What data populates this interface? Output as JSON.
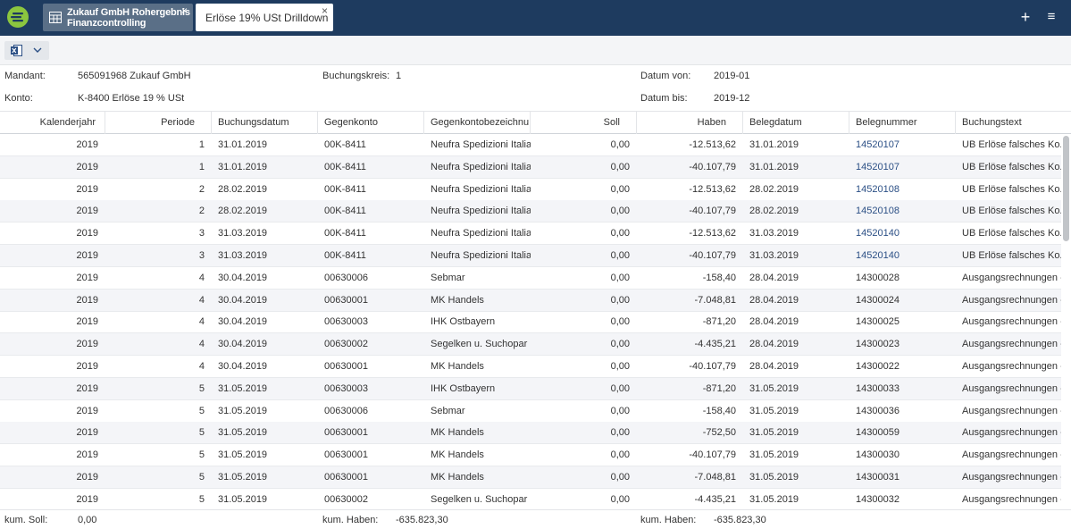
{
  "tabs": [
    {
      "title": "Zukauf GmbH Rohergebnis",
      "subtitle": "Finanzcontrolling"
    },
    {
      "title": "Erlöse 19% USt Drilldown"
    }
  ],
  "icons": {
    "close": "×",
    "plus": "+",
    "menu": "≡"
  },
  "info": {
    "mandant_label": "Mandant:",
    "mandant_value": "565091968 Zukauf GmbH",
    "konto_label": "Konto:",
    "konto_value": "K-8400 Erlöse 19 % USt",
    "buchungskreis_label": "Buchungskreis:",
    "buchungskreis_value": "1",
    "datum_von_label": "Datum von:",
    "datum_von_value": "2019-01",
    "datum_bis_label": "Datum bis:",
    "datum_bis_value": "2019-12"
  },
  "columns": [
    "Kalenderjahr",
    "Periode",
    "Buchungsdatum",
    "Gegenkonto",
    "Gegenkontobezeichnu...",
    "Soll",
    "Haben",
    "Belegdatum",
    "Belegnummer",
    "Buchungstext"
  ],
  "rows": [
    [
      "2019",
      "1",
      "31.01.2019",
      "00K-8411",
      "Neufra Spedizioni Italia",
      "0,00",
      "-12.513,62",
      "31.01.2019",
      "14520107",
      "UB Erlöse falsches Ko..."
    ],
    [
      "2019",
      "1",
      "31.01.2019",
      "00K-8411",
      "Neufra Spedizioni Italia",
      "0,00",
      "-40.107,79",
      "31.01.2019",
      "14520107",
      "UB Erlöse falsches Ko..."
    ],
    [
      "2019",
      "2",
      "28.02.2019",
      "00K-8411",
      "Neufra Spedizioni Italia",
      "0,00",
      "-12.513,62",
      "28.02.2019",
      "14520108",
      "UB Erlöse falsches Ko..."
    ],
    [
      "2019",
      "2",
      "28.02.2019",
      "00K-8411",
      "Neufra Spedizioni Italia",
      "0,00",
      "-40.107,79",
      "28.02.2019",
      "14520108",
      "UB Erlöse falsches Ko..."
    ],
    [
      "2019",
      "3",
      "31.03.2019",
      "00K-8411",
      "Neufra Spedizioni Italia",
      "0,00",
      "-12.513,62",
      "31.03.2019",
      "14520140",
      "UB Erlöse falsches Ko..."
    ],
    [
      "2019",
      "3",
      "31.03.2019",
      "00K-8411",
      "Neufra Spedizioni Italia",
      "0,00",
      "-40.107,79",
      "31.03.2019",
      "14520140",
      "UB Erlöse falsches Ko..."
    ],
    [
      "2019",
      "4",
      "30.04.2019",
      "00630006",
      "Sebmar",
      "0,00",
      "-158,40",
      "28.04.2019",
      "14300028",
      "Ausgangsrechnungen -..."
    ],
    [
      "2019",
      "4",
      "30.04.2019",
      "00630001",
      "MK Handels",
      "0,00",
      "-7.048,81",
      "28.04.2019",
      "14300024",
      "Ausgangsrechnungen -..."
    ],
    [
      "2019",
      "4",
      "30.04.2019",
      "00630003",
      "IHK Ostbayern",
      "0,00",
      "-871,20",
      "28.04.2019",
      "14300025",
      "Ausgangsrechnungen -..."
    ],
    [
      "2019",
      "4",
      "30.04.2019",
      "00630002",
      "Segelken u. Suchopar",
      "0,00",
      "-4.435,21",
      "28.04.2019",
      "14300023",
      "Ausgangsrechnungen -..."
    ],
    [
      "2019",
      "4",
      "30.04.2019",
      "00630001",
      "MK Handels",
      "0,00",
      "-40.107,79",
      "28.04.2019",
      "14300022",
      "Ausgangsrechnungen -..."
    ],
    [
      "2019",
      "5",
      "31.05.2019",
      "00630003",
      "IHK Ostbayern",
      "0,00",
      "-871,20",
      "31.05.2019",
      "14300033",
      "Ausgangsrechnungen -..."
    ],
    [
      "2019",
      "5",
      "31.05.2019",
      "00630006",
      "Sebmar",
      "0,00",
      "-158,40",
      "31.05.2019",
      "14300036",
      "Ausgangsrechnungen -..."
    ],
    [
      "2019",
      "5",
      "31.05.2019",
      "00630001",
      "MK Handels",
      "0,00",
      "-752,50",
      "31.05.2019",
      "14300059",
      "Ausgangsrechnungen -..."
    ],
    [
      "2019",
      "5",
      "31.05.2019",
      "00630001",
      "MK Handels",
      "0,00",
      "-40.107,79",
      "31.05.2019",
      "14300030",
      "Ausgangsrechnungen -..."
    ],
    [
      "2019",
      "5",
      "31.05.2019",
      "00630001",
      "MK Handels",
      "0,00",
      "-7.048,81",
      "31.05.2019",
      "14300031",
      "Ausgangsrechnungen -..."
    ],
    [
      "2019",
      "5",
      "31.05.2019",
      "00630002",
      "Segelken u. Suchopar",
      "0,00",
      "-4.435,21",
      "31.05.2019",
      "14300032",
      "Ausgangsrechnungen -..."
    ]
  ],
  "footer": {
    "kum_soll_label": "kum. Soll:",
    "kum_soll_value": "0,00",
    "kum_haben_label": "kum. Haben:",
    "kum_haben_value": "-635.823,30",
    "kum_haben2_label": "kum. Haben:",
    "kum_haben2_value": "-635.823,30"
  },
  "colors": {
    "topbar": "#1e3b5f",
    "logo": "#8cc63f",
    "link": "#2b4f85"
  }
}
